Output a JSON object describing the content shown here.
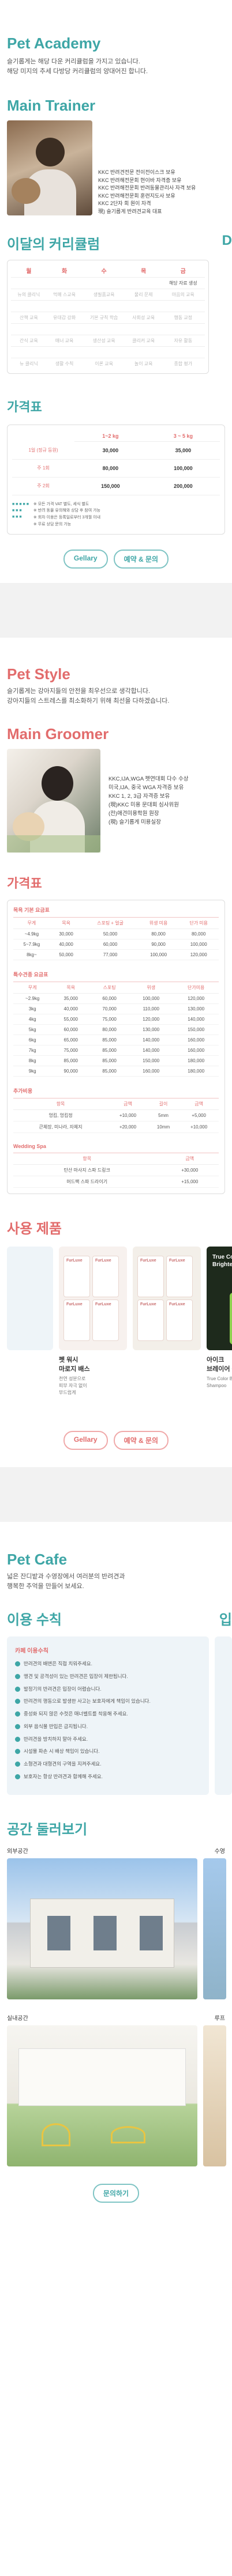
{
  "academy": {
    "title": "Pet Academy",
    "intro": [
      "슬기롭게는 해당 다운 커리큘럼을 가지고 있습니다.",
      "해당 미지의 추세 다방당 커리큘럼의 양대어진 합니다."
    ],
    "trainer_title": "Main Trainer",
    "trainer_bio": [
      "KKC 반려견전문 전이전이스크 보유",
      "KKC 반려해전문회 현이바 자격증 보유",
      "KKC 반려해전문회 반려동물관리사 자격 보유",
      "KKC 반려해전문회 훈련지도사 보유",
      "KKC 2단자 회 원이 자격",
      "現) 슬기롭게 반려견교육 대표"
    ],
    "curriculum_title": "이달의 커리큘럼",
    "calendar_days": [
      "월",
      "화",
      "수",
      "목",
      "금"
    ],
    "calendar_rows": [
      [
        "",
        "",
        "",
        "",
        "해당 자료 생성"
      ],
      [
        "뉴의 클리닉",
        "먹매 스교육",
        "생필품교육",
        "물리 문제",
        "마음의 교육"
      ],
      [
        "",
        "",
        "",
        "",
        ""
      ],
      [
        "산책 교육",
        "유대감 강화",
        "기본 규칙 학습",
        "사회성 교육",
        "행동 교정"
      ],
      [
        "",
        "",
        "",
        "",
        ""
      ],
      [
        "간식 교육",
        "매너 교육",
        "생산성 교육",
        "클리커 교육",
        "자유 활동"
      ],
      [
        "",
        "",
        "",
        "",
        ""
      ],
      [
        "뉴 클리닉",
        "생활 수칙",
        "이론 교육",
        "놀이 교육",
        "종합 평가"
      ]
    ],
    "price_title": "가격표",
    "price_cols": [
      "1~2 kg",
      "3 ~ 5 kg"
    ],
    "price_rows": [
      {
        "label": "1일 (정규 등원)",
        "v1": "30,000",
        "v2": "35,000"
      },
      {
        "label": "주 1회",
        "v1": "80,000",
        "v2": "100,000"
      },
      {
        "label": "주 2회",
        "v1": "150,000",
        "v2": "200,000"
      }
    ],
    "price_notes": [
      "※ 모든 가격 VAT 별도, 세식 별도",
      "※ 반려 동물 유의해와 상담 후 참여 가능",
      "※ 회차 이용은 등록일로부터 3개월 이내",
      "※ 무료 상담 문의 가능"
    ],
    "gallery_button": "Gellary",
    "reserve_button": "예약 & 문의"
  },
  "style": {
    "title": "Pet Style",
    "intro": [
      "슬기롭게는 강아지들의 안전을 최우선으로 생각합니다.",
      "강아지들의 스트레스를 최소화하기 위해 최선을 다하겠습니다."
    ],
    "groomer_title": "Main Groomer",
    "groomer_bio": [
      "KKC,IJA,WGA 펫연대회 다수 수상",
      "미국,IJA, 중국 WGA 자격증 보유",
      "KKC 1, 2, 3급 자격증 보유",
      "(現)KKC 미용 문대회 심사위원",
      "(전)애견미용학원 원장",
      "(現) 슬기롭게 미용실장"
    ],
    "price_title": "가격표",
    "bath_label": "목욕 기본 요금표",
    "bath_cols": [
      "무게",
      "목욕",
      "스포팅 + 얼굴",
      "위생 미용",
      "단가 미용"
    ],
    "bath_rows": [
      [
        "~4.9kg",
        "30,000",
        "50,000",
        "80,000",
        "80,000"
      ],
      [
        "5~7.9kg",
        "40,000",
        "60,000",
        "90,000",
        "100,000"
      ],
      [
        "8kg~",
        "50,000",
        "77,000",
        "100,000",
        "120,000"
      ]
    ],
    "cut_label": "특수견종 요금표",
    "cut_cols": [
      "무게",
      "목욕",
      "스포팅",
      "위생",
      "단가미용"
    ],
    "cut_rows": [
      [
        "~2.9kg",
        "35,000",
        "60,000",
        "100,000",
        "120,000"
      ],
      [
        "3kg",
        "40,000",
        "70,000",
        "110,000",
        "130,000"
      ],
      [
        "4kg",
        "55,000",
        "75,000",
        "120,000",
        "140,000"
      ],
      [
        "5kg",
        "60,000",
        "80,000",
        "130,000",
        "150,000"
      ],
      [
        "6kg",
        "65,000",
        "85,000",
        "140,000",
        "160,000"
      ],
      [
        "7kg",
        "75,000",
        "85,000",
        "140,000",
        "160,000"
      ],
      [
        "8kg",
        "85,000",
        "85,000",
        "150,000",
        "180,000"
      ],
      [
        "9kg",
        "90,000",
        "85,000",
        "160,000",
        "180,000"
      ]
    ],
    "extra_label": "추가비용",
    "extra_cols": [
      "항목",
      "금액",
      "길이",
      "금액"
    ],
    "extra_rows": [
      [
        "엉킴, 엉킴정",
        "+10,000",
        "5mm",
        "+5,000"
      ],
      [
        "큰체장, 미나라, 자체지",
        "+20,000",
        "10mm",
        "+10,000"
      ]
    ],
    "spa_label": "Wedding Spa",
    "spa_cols": [
      "항목",
      "금액"
    ],
    "spa_rows": [
      [
        "탄산 마사지 스파 드링크",
        "+30,000"
      ],
      [
        "머드팩 스파 드라이기",
        "+15,000"
      ]
    ],
    "products_title": "사용 제품",
    "products": [
      {
        "name": "펫 워시\n마로지 배스",
        "desc": "천연 성분으로\n피부 자극 없이\n부드럽게"
      },
      {
        "name": "",
        "desc": ""
      },
      {
        "name": "",
        "desc": ""
      },
      {
        "name": "아이크\n브레이어 샴",
        "desc": "True Color Brigh\nShampoo"
      }
    ],
    "product_brand": "FurLuxe",
    "product_shampoo": "True Color Brightening Shampoo",
    "gallery_button": "Gellary",
    "reserve_button": "예약 & 문의"
  },
  "cafe": {
    "title": "Pet Cafe",
    "intro": [
      "넓은 잔디밭과 수영장에서 여러분의 반려견과",
      "행복한 추억을 만들어 보세요."
    ],
    "rules_title": "이용 수칙",
    "rules_label": "카페 이용수칙",
    "rules": [
      "반려견의 배변은 직접 치워주세요.",
      "맹견 및 공격성이 있는 반려견은 입장이 제한됩니다.",
      "발정기의 반려견은 입장이 어렵습니다.",
      "반려견의 행동으로 발생한 사고는 보호자에게 책임이 있습니다.",
      "중성화 되지 않은 수컷은 매너벨트를 착용해 주세요.",
      "외부 음식물 반입은 금지됩니다.",
      "반려견을 방치하지 말아 주세요.",
      "시설물 파손 시 배상 책임이 있습니다.",
      "소형견과 대형견의 구역을 지켜주세요.",
      "보호자는 항상 반려견과 함께해 주세요."
    ],
    "space_title": "공간 둘러보기",
    "outdoor_label": "외부공간",
    "indoor_label": "실내공간",
    "pool_label": "수영",
    "next_label": "루프",
    "contact_button": "문의하기"
  },
  "colors": {
    "teal": "#3ea6a6",
    "coral": "#e26c6c",
    "cardbg": "#eef4f8"
  }
}
